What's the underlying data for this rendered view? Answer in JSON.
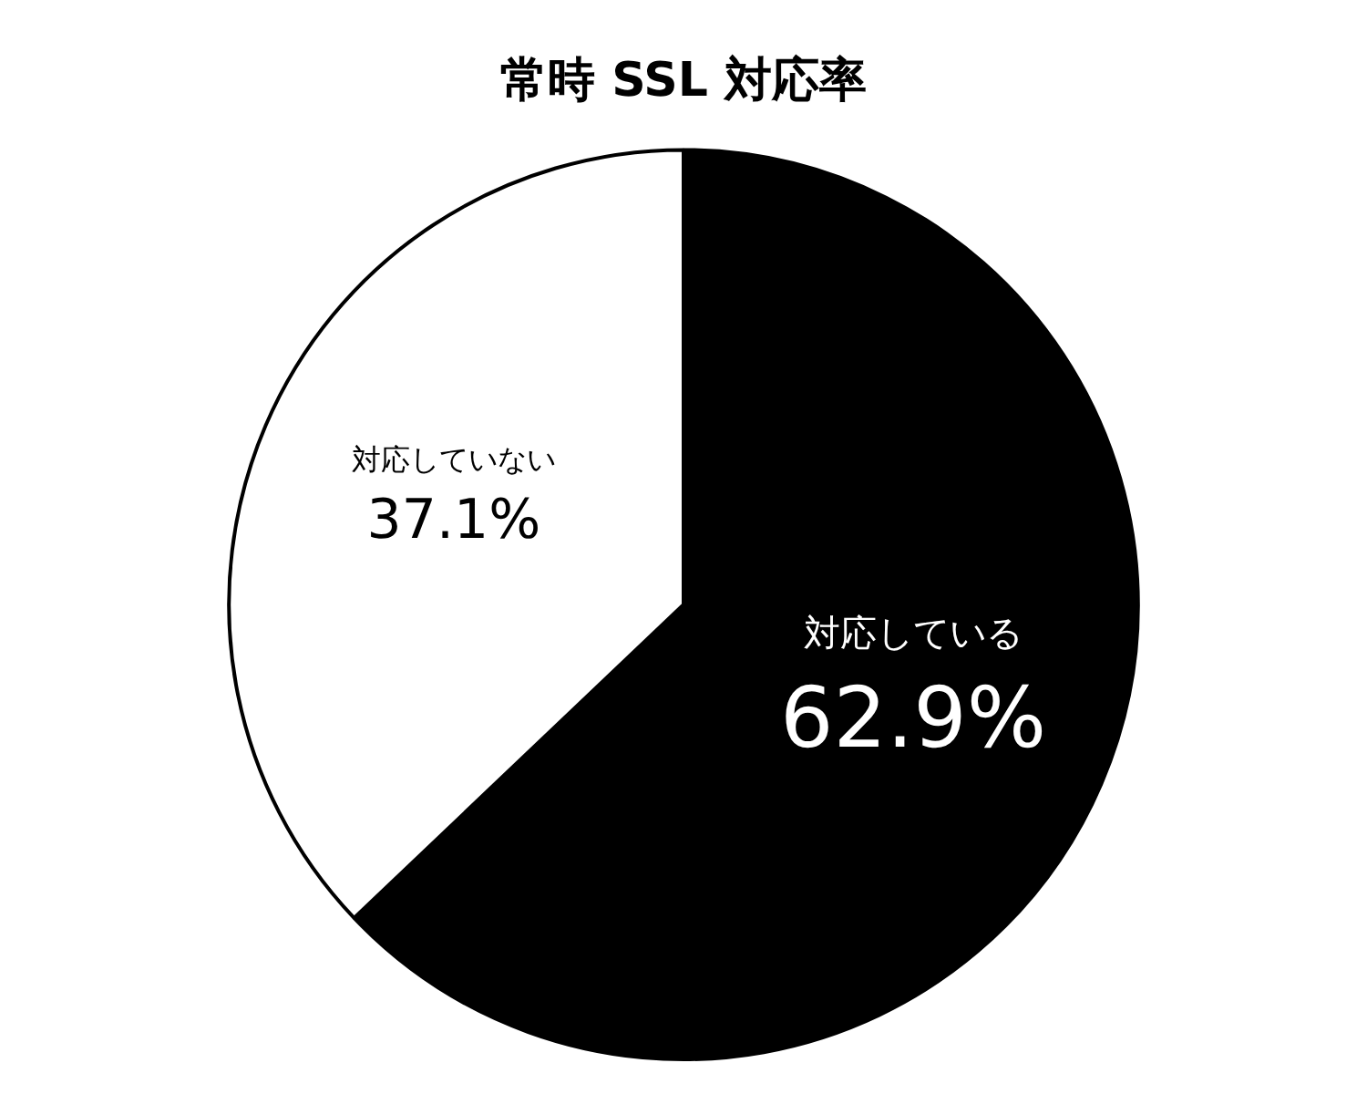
{
  "chart_data": {
    "type": "pie",
    "title": "常時 SSL 対応率",
    "categories": [
      "対応している",
      "対応していない"
    ],
    "values": [
      62.9,
      37.1
    ],
    "colors": [
      "#000000",
      "#ffffff"
    ],
    "value_labels": [
      "62.9%",
      "37.1%"
    ],
    "legend": false
  }
}
